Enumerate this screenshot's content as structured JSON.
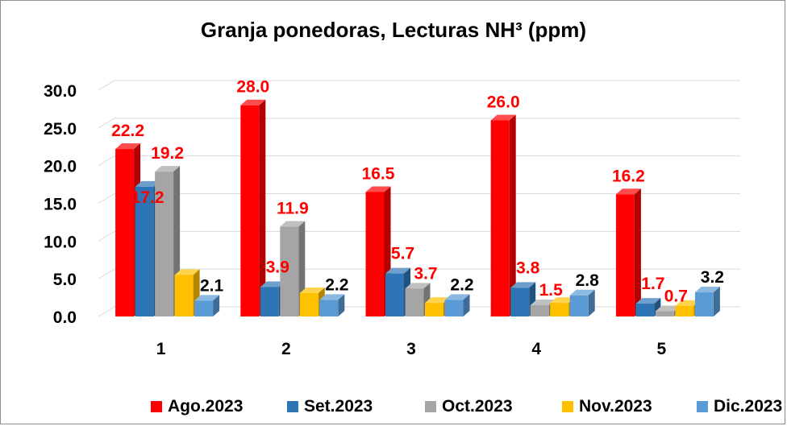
{
  "chart_data": {
    "type": "bar",
    "title": "Granja ponedoras, Lecturas NH³ (ppm)",
    "categories": [
      "1",
      "2",
      "3",
      "4",
      "5"
    ],
    "series": [
      {
        "name": "Ago.2023",
        "color": "#ff0000",
        "values": [
          22.2,
          28.0,
          16.5,
          26.0,
          16.2
        ],
        "labels": [
          "22.2",
          "28.0",
          "16.5",
          "26.0",
          "16.2"
        ],
        "label_color": "#ff0000"
      },
      {
        "name": "Set.2023",
        "color": "#2e75b6",
        "values": [
          17.2,
          3.9,
          5.7,
          3.8,
          1.7
        ],
        "labels": [
          "17.2",
          "3.9",
          "5.7",
          "3.8",
          "1.7"
        ],
        "label_color": "#ff0000"
      },
      {
        "name": "Oct.2023",
        "color": "#a5a5a5",
        "values": [
          19.2,
          11.9,
          3.7,
          1.5,
          0.7
        ],
        "labels": [
          "19.2",
          "11.9",
          "3.7",
          "1.5",
          "0.7"
        ],
        "label_color": "#ff0000"
      },
      {
        "name": "Nov.2023",
        "color": "#ffc000",
        "values": [
          5.5,
          3.1,
          1.8,
          1.8,
          1.4
        ],
        "labels": [
          "",
          "",
          "",
          "",
          ""
        ],
        "label_color": "#000000"
      },
      {
        "name": "Dic.2023",
        "color": "#5b9bd5",
        "values": [
          2.1,
          2.2,
          2.2,
          2.8,
          3.2
        ],
        "labels": [
          "2.1",
          "2.2",
          "2.2",
          "2.8",
          "3.2"
        ],
        "label_color": "#000000"
      }
    ],
    "yticks": [
      "0.0",
      "5.0",
      "10.0",
      "15.0",
      "20.0",
      "25.0",
      "30.0"
    ],
    "ylim": [
      0,
      30
    ],
    "grid": true,
    "legend_position": "bottom"
  }
}
